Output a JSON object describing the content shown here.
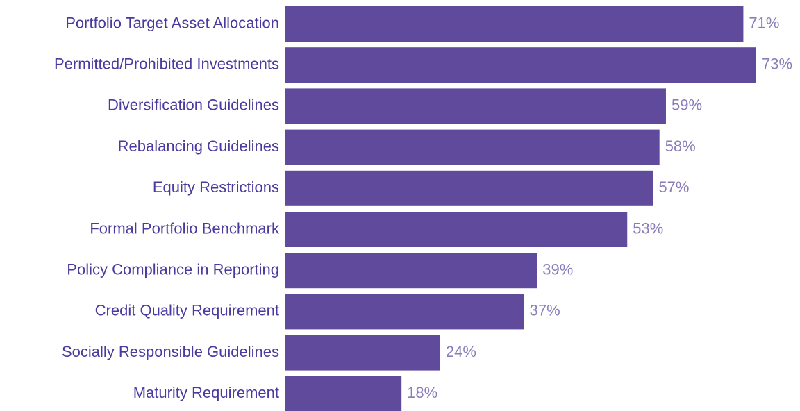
{
  "chart_data": {
    "type": "bar",
    "orientation": "horizontal",
    "categories": [
      "Portfolio Target Asset Allocation",
      "Permitted/Prohibited Investments",
      "Diversification Guidelines",
      "Rebalancing Guidelines",
      "Equity Restrictions",
      "Formal Portfolio Benchmark",
      "Policy Compliance in Reporting",
      "Credit Quality Requirement",
      "Socially Responsible Guidelines",
      "Maturity Requirement"
    ],
    "values": [
      71,
      73,
      59,
      58,
      57,
      53,
      39,
      37,
      24,
      18
    ],
    "value_labels": [
      "71%",
      "73%",
      "59%",
      "58%",
      "57%",
      "53%",
      "39%",
      "37%",
      "24%",
      "18%"
    ],
    "color": "#604a9c"
  }
}
